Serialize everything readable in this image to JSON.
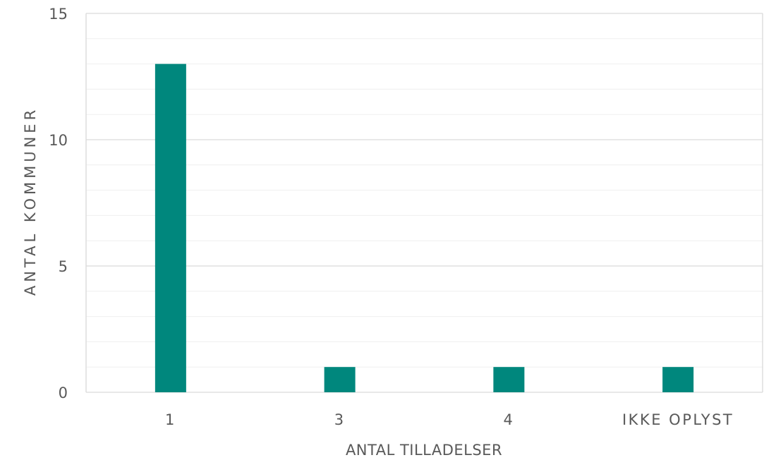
{
  "chart_data": {
    "type": "bar",
    "categories": [
      "1",
      "3",
      "4",
      "IKKE OPLYST"
    ],
    "values": [
      13,
      1,
      1,
      1
    ],
    "xlabel": "ANTAL TILLADELSER",
    "ylabel": "ANTAL KOMMUNER",
    "ylim": [
      0,
      15
    ],
    "yticks": [
      0,
      5,
      10,
      15
    ],
    "grid": true,
    "minor_grid": true,
    "legend": "none",
    "colors": {
      "bar": "#00877D",
      "major_grid": "#d9d9d9",
      "minor_grid": "#efefef",
      "text": "#595959"
    }
  }
}
